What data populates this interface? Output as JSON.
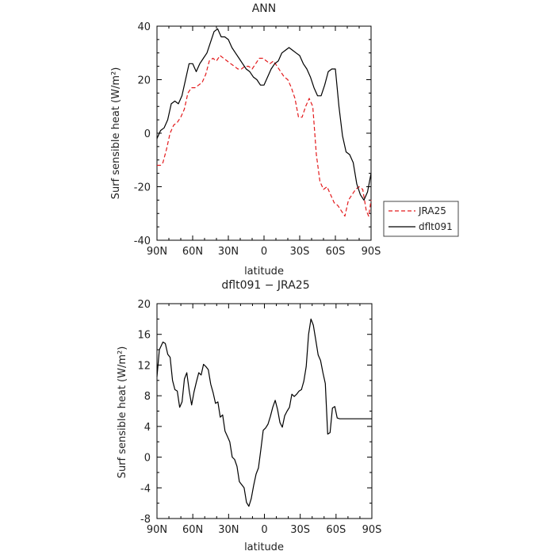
{
  "chart_data": [
    {
      "type": "line",
      "title": "ANN",
      "xlabel": "latitude",
      "ylabel": "Surf sensible heat (W/m²)",
      "xlim": [
        90,
        -90
      ],
      "ylim": [
        -40,
        40
      ],
      "x_ticks": [
        90,
        60,
        30,
        0,
        -30,
        -60,
        -90
      ],
      "x_tick_labels": [
        "90N",
        "60N",
        "30N",
        "0",
        "30S",
        "60S",
        "90S"
      ],
      "y_ticks": [
        -40,
        -20,
        0,
        20,
        40
      ],
      "y_tick_labels": [
        "-40",
        "-20",
        "0",
        "20",
        "40"
      ],
      "legend": {
        "position": "right",
        "entries": [
          "JRA25",
          "dflt091"
        ]
      },
      "series": [
        {
          "name": "JRA25",
          "color": "#e31a1c",
          "dash": "dashed",
          "x": [
            90,
            87,
            85,
            82,
            79,
            76,
            73,
            70,
            67,
            64,
            61,
            58,
            55,
            52,
            49,
            46,
            43,
            40,
            37,
            34,
            31,
            28,
            25,
            22,
            19,
            16,
            13,
            10,
            7,
            4,
            1,
            -2,
            -5,
            -8,
            -11,
            -14,
            -17,
            -20,
            -23,
            -26,
            -29,
            -32,
            -35,
            -38,
            -41,
            -44,
            -47,
            -50,
            -53,
            -56,
            -59,
            -62,
            -65,
            -68,
            -71,
            -74,
            -77,
            -80,
            -83,
            -86,
            -88,
            -90
          ],
          "y": [
            -12,
            -12,
            -11,
            -6,
            0,
            3,
            4,
            6,
            9,
            15,
            17,
            17,
            18,
            19,
            22,
            27,
            28,
            27,
            29,
            28,
            27,
            26,
            25,
            24,
            24,
            25,
            25,
            24,
            26,
            28,
            28,
            27,
            26,
            27,
            25,
            23,
            21,
            20,
            17,
            13,
            6,
            6,
            10,
            13,
            10,
            -8,
            -18,
            -21,
            -20,
            -23,
            -26,
            -27,
            -29,
            -31,
            -25,
            -23,
            -21,
            -20,
            -21,
            -29,
            -31,
            -25
          ]
        },
        {
          "name": "dflt091",
          "color": "#000000",
          "dash": "solid",
          "x": [
            90,
            87,
            84,
            81,
            78,
            75,
            72,
            69,
            66,
            63,
            60,
            57,
            54,
            51,
            48,
            45,
            42,
            39,
            36,
            33,
            30,
            27,
            24,
            21,
            18,
            15,
            12,
            9,
            6,
            3,
            0,
            -3,
            -6,
            -9,
            -12,
            -15,
            -18,
            -21,
            -24,
            -27,
            -30,
            -33,
            -36,
            -39,
            -42,
            -45,
            -48,
            -51,
            -54,
            -57,
            -60,
            -63,
            -66,
            -69,
            -72,
            -75,
            -78,
            -81,
            -84,
            -87,
            -90
          ],
          "y": [
            -2,
            1,
            2,
            5,
            11,
            12,
            11,
            14,
            20,
            26,
            26,
            23,
            26,
            28,
            30,
            34,
            38,
            39,
            36,
            36,
            35,
            32,
            30,
            28,
            26,
            24,
            23,
            21,
            20,
            18,
            18,
            21,
            24,
            26,
            27,
            30,
            31,
            32,
            31,
            30,
            29,
            26,
            24,
            21,
            17,
            14,
            14,
            18,
            23,
            24,
            24,
            10,
            -1,
            -7,
            -8,
            -11,
            -19,
            -23,
            -25,
            -22,
            -15
          ]
        }
      ]
    },
    {
      "type": "line",
      "title": "dflt091 − JRA25",
      "xlabel": "latitude",
      "ylabel": "Surf sensible heat (W/m²)",
      "xlim": [
        90,
        -90
      ],
      "ylim": [
        -8,
        20
      ],
      "x_ticks": [
        90,
        60,
        30,
        0,
        -30,
        -60,
        -90
      ],
      "x_tick_labels": [
        "90N",
        "60N",
        "30N",
        "0",
        "30S",
        "60S",
        "90S"
      ],
      "y_ticks": [
        -8,
        -4,
        0,
        4,
        8,
        12,
        16,
        20
      ],
      "y_tick_labels": [
        "-8",
        "-4",
        "0",
        "4",
        "8",
        "12",
        "16",
        "20"
      ],
      "series": [
        {
          "color": "#000000",
          "dash": "solid",
          "x": [
            90,
            88,
            85,
            83,
            81,
            79,
            77,
            75,
            73,
            71,
            69,
            67,
            65,
            63,
            61,
            59,
            57,
            55,
            53,
            51,
            49,
            47,
            45,
            43,
            41,
            39,
            37,
            35,
            33,
            31,
            29,
            27,
            25,
            23,
            21,
            19,
            17,
            15,
            13,
            11,
            9,
            7,
            5,
            3,
            1,
            -1,
            -3,
            -5,
            -7,
            -9,
            -11,
            -13,
            -15,
            -17,
            -19,
            -21,
            -23,
            -25,
            -27,
            -29,
            -31,
            -33,
            -35,
            -37,
            -39,
            -41,
            -43,
            -45,
            -47,
            -49,
            -51,
            -53,
            -55,
            -57,
            -59,
            -61,
            -63,
            -65,
            -67,
            -69,
            -71,
            -73,
            -75,
            -77,
            -79,
            -81,
            -83,
            -85,
            -87,
            -89,
            -90
          ],
          "y": [
            10.5,
            14,
            15,
            14.8,
            13.4,
            13,
            10,
            8.8,
            8.6,
            6.5,
            7.2,
            10.2,
            11,
            8.6,
            6.8,
            8.5,
            9.8,
            11,
            10.7,
            12.1,
            11.8,
            11.4,
            9.5,
            8.4,
            7,
            7.2,
            5.2,
            5.5,
            3.4,
            2.7,
            2,
            0,
            -0.3,
            -1.2,
            -3.2,
            -3.6,
            -4,
            -5.9,
            -6.4,
            -5.4,
            -3.7,
            -2.2,
            -1.4,
            1,
            3.5,
            3.8,
            4.3,
            5.3,
            6.5,
            7.4,
            6.2,
            4.5,
            3.9,
            5.4,
            6,
            6.5,
            8.2,
            7.9,
            8.2,
            8.6,
            8.8,
            9.9,
            11.8,
            16,
            18,
            17.2,
            15.3,
            13.3,
            12.6,
            11,
            9.6,
            3,
            3.2,
            6.4,
            6.6,
            5.1,
            5,
            5,
            5,
            5,
            5,
            5,
            5,
            5,
            5,
            5,
            5,
            5,
            5,
            5,
            5
          ]
        }
      ]
    }
  ]
}
